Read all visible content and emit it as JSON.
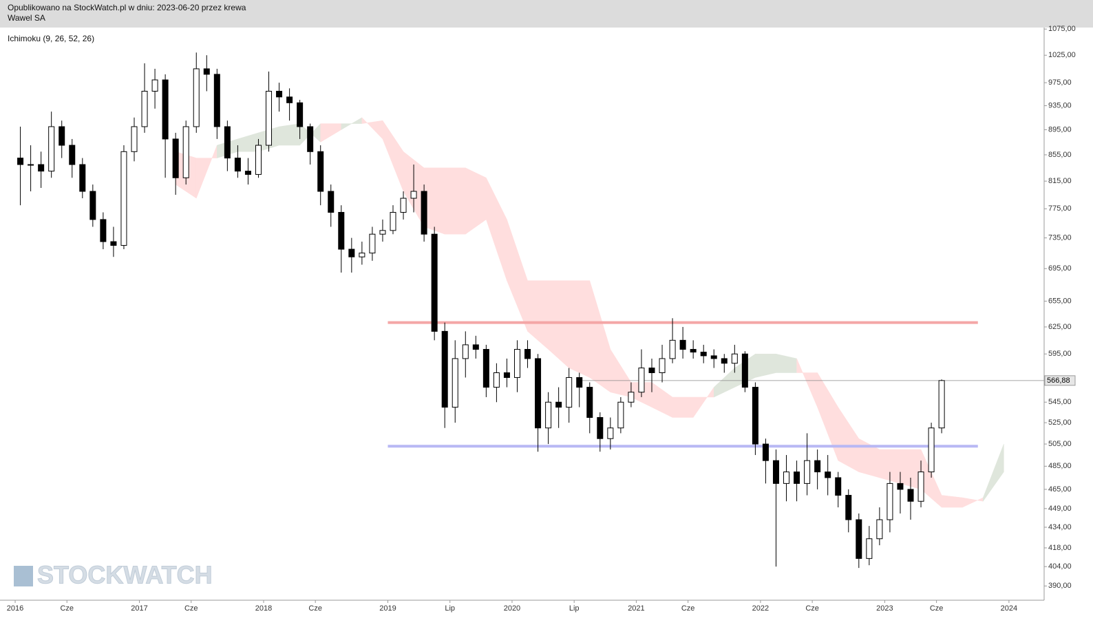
{
  "header": {
    "published": "Opublikowano na StockWatch.pl w dniu: 2023-06-20 przez krewa",
    "instrument": "Wawel SA"
  },
  "watermark": "STOCKWATCH",
  "chart_data": {
    "type": "candlestick",
    "indicator": "Ichimoku (9, 26, 52, 26)",
    "log_scale": true,
    "x": [
      "2016-01",
      "2016-02",
      "2016-03",
      "2016-04",
      "2016-05",
      "2016-06",
      "2016-07",
      "2016-08",
      "2016-09",
      "2016-10",
      "2016-11",
      "2016-12",
      "2017-01",
      "2017-02",
      "2017-03",
      "2017-04",
      "2017-05",
      "2017-06",
      "2017-07",
      "2017-08",
      "2017-09",
      "2017-10",
      "2017-11",
      "2017-12",
      "2018-01",
      "2018-02",
      "2018-03",
      "2018-04",
      "2018-05",
      "2018-06",
      "2018-07",
      "2018-08",
      "2018-09",
      "2018-10",
      "2018-11",
      "2018-12",
      "2019-01",
      "2019-02",
      "2019-03",
      "2019-04",
      "2019-05",
      "2019-06",
      "2019-07",
      "2019-08",
      "2019-09",
      "2019-10",
      "2019-11",
      "2019-12",
      "2020-01",
      "2020-02",
      "2020-03",
      "2020-04",
      "2020-05",
      "2020-06",
      "2020-07",
      "2020-08",
      "2020-09",
      "2020-10",
      "2020-11",
      "2020-12",
      "2021-01",
      "2021-02",
      "2021-03",
      "2021-04",
      "2021-05",
      "2021-06",
      "2021-07",
      "2021-08",
      "2021-09",
      "2021-10",
      "2021-11",
      "2021-12",
      "2022-01",
      "2022-02",
      "2022-03",
      "2022-04",
      "2022-05",
      "2022-06",
      "2022-07",
      "2022-08",
      "2022-09",
      "2022-10",
      "2022-11",
      "2022-12",
      "2023-01",
      "2023-02",
      "2023-03",
      "2023-04",
      "2023-05",
      "2023-06"
    ],
    "open": [
      850,
      840,
      840,
      830,
      900,
      870,
      840,
      800,
      760,
      730,
      725,
      860,
      900,
      960,
      980,
      880,
      820,
      900,
      1000,
      990,
      900,
      850,
      830,
      825,
      870,
      960,
      950,
      940,
      900,
      860,
      800,
      770,
      720,
      710,
      715,
      740,
      745,
      770,
      790,
      800,
      740,
      620,
      540,
      590,
      605,
      600,
      560,
      575,
      570,
      600,
      590,
      520,
      545,
      540,
      570,
      560,
      530,
      510,
      520,
      545,
      555,
      580,
      575,
      590,
      610,
      600,
      597,
      593,
      590,
      585,
      595,
      560,
      505,
      490,
      470,
      480,
      470,
      490,
      480,
      475,
      460,
      440,
      410,
      425,
      440,
      470,
      465,
      455,
      480,
      520
    ],
    "high": [
      900,
      870,
      860,
      925,
      910,
      880,
      850,
      810,
      770,
      750,
      870,
      915,
      1010,
      1000,
      990,
      890,
      910,
      1030,
      1025,
      1000,
      910,
      870,
      850,
      880,
      995,
      975,
      965,
      945,
      905,
      870,
      810,
      780,
      735,
      730,
      750,
      760,
      780,
      800,
      840,
      810,
      750,
      630,
      610,
      620,
      615,
      605,
      585,
      590,
      610,
      610,
      595,
      555,
      560,
      580,
      575,
      565,
      535,
      530,
      550,
      565,
      600,
      590,
      605,
      635,
      625,
      610,
      605,
      600,
      595,
      605,
      598,
      565,
      510,
      500,
      495,
      490,
      515,
      500,
      495,
      480,
      465,
      445,
      435,
      450,
      480,
      480,
      475,
      490,
      525,
      568
    ],
    "low": [
      780,
      800,
      805,
      820,
      850,
      820,
      790,
      750,
      720,
      710,
      720,
      845,
      890,
      930,
      820,
      795,
      810,
      890,
      960,
      880,
      830,
      820,
      810,
      820,
      860,
      925,
      910,
      880,
      840,
      780,
      750,
      690,
      690,
      700,
      705,
      730,
      740,
      760,
      770,
      730,
      610,
      520,
      525,
      570,
      590,
      550,
      545,
      560,
      555,
      580,
      498,
      505,
      520,
      525,
      540,
      515,
      498,
      500,
      515,
      540,
      550,
      555,
      565,
      585,
      590,
      590,
      585,
      580,
      575,
      575,
      555,
      495,
      470,
      404,
      455,
      455,
      460,
      465,
      460,
      450,
      430,
      403,
      405,
      420,
      430,
      445,
      440,
      450,
      475,
      515
    ],
    "close": [
      840,
      840,
      830,
      900,
      870,
      840,
      800,
      760,
      730,
      725,
      860,
      900,
      960,
      980,
      880,
      820,
      900,
      1000,
      990,
      900,
      850,
      830,
      825,
      870,
      960,
      950,
      940,
      900,
      860,
      800,
      770,
      720,
      710,
      715,
      740,
      745,
      770,
      790,
      800,
      740,
      620,
      540,
      590,
      605,
      600,
      560,
      575,
      570,
      600,
      590,
      520,
      545,
      540,
      570,
      560,
      530,
      510,
      520,
      545,
      555,
      580,
      575,
      590,
      610,
      600,
      597,
      593,
      590,
      585,
      595,
      560,
      505,
      490,
      470,
      480,
      470,
      490,
      480,
      475,
      460,
      440,
      410,
      425,
      440,
      470,
      465,
      455,
      480,
      520,
      566.88
    ],
    "up_color": "#ffffff",
    "down_color": "#000000",
    "wick_color": "#000000",
    "cloud": {
      "x": [
        "2017-04",
        "2017-06",
        "2017-08",
        "2017-10",
        "2017-12",
        "2018-02",
        "2018-04",
        "2018-06",
        "2018-08",
        "2018-10",
        "2018-12",
        "2019-02",
        "2019-04",
        "2019-06",
        "2019-08",
        "2019-10",
        "2019-12",
        "2020-02",
        "2020-04",
        "2020-06",
        "2020-08",
        "2020-10",
        "2020-12",
        "2021-02",
        "2021-04",
        "2021-06",
        "2021-08",
        "2021-10",
        "2021-12",
        "2022-02",
        "2022-04",
        "2022-06",
        "2022-08",
        "2022-10",
        "2022-12",
        "2023-02",
        "2023-04",
        "2023-06",
        "2023-08",
        "2023-10",
        "2023-12"
      ],
      "span_a": [
        810,
        790,
        870,
        880,
        890,
        900,
        905,
        875,
        895,
        915,
        880,
        800,
        750,
        740,
        740,
        760,
        680,
        620,
        600,
        580,
        570,
        555,
        550,
        540,
        530,
        530,
        560,
        580,
        595,
        595,
        590,
        540,
        490,
        480,
        475,
        470,
        465,
        450,
        450,
        458,
        505
      ],
      "span_b": [
        860,
        850,
        850,
        860,
        860,
        870,
        870,
        905,
        905,
        905,
        910,
        860,
        835,
        835,
        835,
        820,
        760,
        680,
        680,
        680,
        680,
        600,
        565,
        565,
        550,
        550,
        550,
        560,
        570,
        575,
        575,
        575,
        540,
        510,
        500,
        500,
        500,
        460,
        458,
        455,
        480
      ],
      "bull_color": "#dfe6dc",
      "bear_color": "#ffdede"
    },
    "levels": [
      {
        "value": 630,
        "color": "#f4a6a6",
        "from": "2019-01",
        "to": "2023-10"
      },
      {
        "value": 503,
        "color": "#b8b8f4",
        "from": "2019-01",
        "to": "2023-10"
      }
    ],
    "last": {
      "value": 566.88,
      "label": "566,88"
    },
    "xlim": [
      "2015-12",
      "2024-04"
    ],
    "ylim": [
      380,
      1078
    ],
    "yticks": [
      {
        "value": 1075,
        "label": "1075,00"
      },
      {
        "value": 1025,
        "label": "1025,00"
      },
      {
        "value": 975,
        "label": "975,00"
      },
      {
        "value": 935,
        "label": "935,00"
      },
      {
        "value": 895,
        "label": "895,00"
      },
      {
        "value": 855,
        "label": "855,00"
      },
      {
        "value": 815,
        "label": "815,00"
      },
      {
        "value": 775,
        "label": "775,00"
      },
      {
        "value": 735,
        "label": "735,00"
      },
      {
        "value": 695,
        "label": "695,00"
      },
      {
        "value": 655,
        "label": "655,00"
      },
      {
        "value": 625,
        "label": "625,00"
      },
      {
        "value": 595,
        "label": "595,00"
      },
      {
        "value": 545,
        "label": "545,00"
      },
      {
        "value": 525,
        "label": "525,00"
      },
      {
        "value": 505,
        "label": "505,00"
      },
      {
        "value": 485,
        "label": "485,00"
      },
      {
        "value": 465,
        "label": "465,00"
      },
      {
        "value": 449,
        "label": "449,00"
      },
      {
        "value": 434,
        "label": "434,00"
      },
      {
        "value": 418,
        "label": "418,00"
      },
      {
        "value": 404,
        "label": "404,00"
      },
      {
        "value": 390,
        "label": "390,00"
      }
    ],
    "xticks": [
      {
        "value": "2016-01",
        "label": "2016"
      },
      {
        "value": "2016-06",
        "label": "Cze"
      },
      {
        "value": "2017-01",
        "label": "2017"
      },
      {
        "value": "2017-06",
        "label": "Cze"
      },
      {
        "value": "2018-01",
        "label": "2018"
      },
      {
        "value": "2018-06",
        "label": "Cze"
      },
      {
        "value": "2019-01",
        "label": "2019"
      },
      {
        "value": "2019-07",
        "label": "Lip"
      },
      {
        "value": "2020-01",
        "label": "2020"
      },
      {
        "value": "2020-07",
        "label": "Lip"
      },
      {
        "value": "2021-01",
        "label": "2021"
      },
      {
        "value": "2021-06",
        "label": "Cze"
      },
      {
        "value": "2022-01",
        "label": "2022"
      },
      {
        "value": "2022-06",
        "label": "Cze"
      },
      {
        "value": "2023-01",
        "label": "2023"
      },
      {
        "value": "2023-06",
        "label": "Cze"
      },
      {
        "value": "2024-01",
        "label": "2024"
      }
    ]
  }
}
